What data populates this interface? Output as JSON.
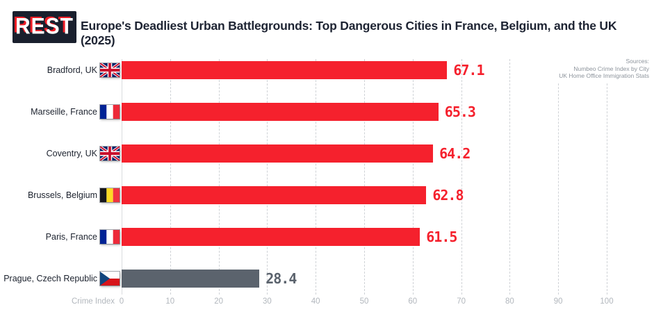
{
  "logo": {
    "text": "REST"
  },
  "sources": {
    "line1": "Sources:",
    "line2": "Numbeo Crime Index by City",
    "line3": "UK Home Office Immigration Stats"
  },
  "chart_data": {
    "type": "bar",
    "orientation": "horizontal",
    "title": "Europe's Deadliest Urban Battlegrounds: Top Dangerous Cities in France, Belgium, and the UK (2025)",
    "xlabel": "Crime Index",
    "xlim": [
      0,
      100
    ],
    "ticks": [
      0,
      10,
      20,
      30,
      40,
      50,
      60,
      70,
      80,
      90,
      100
    ],
    "grid": "vertical-dashed",
    "highlight_color": "#f5212d",
    "comparison_color": "#5b636d",
    "categories": [
      "Bradford, UK",
      "Marseille, France",
      "Coventry, UK",
      "Brussels, Belgium",
      "Paris, France",
      "Prague, Czech Republic"
    ],
    "values": [
      67.1,
      65.3,
      64.2,
      62.8,
      61.5,
      28.4
    ],
    "bars": [
      {
        "label": "Bradford, UK",
        "value": 67.1,
        "flag": "uk",
        "color": "#f5212d",
        "value_color": "#f5212d"
      },
      {
        "label": "Marseille, France",
        "value": 65.3,
        "flag": "france",
        "color": "#f5212d",
        "value_color": "#f5212d"
      },
      {
        "label": "Coventry, UK",
        "value": 64.2,
        "flag": "uk",
        "color": "#f5212d",
        "value_color": "#f5212d"
      },
      {
        "label": "Brussels, Belgium",
        "value": 62.8,
        "flag": "belgium",
        "color": "#f5212d",
        "value_color": "#f5212d"
      },
      {
        "label": "Paris, France",
        "value": 61.5,
        "flag": "france",
        "color": "#f5212d",
        "value_color": "#f5212d"
      },
      {
        "label": "Prague, Czech Republic",
        "value": 28.4,
        "flag": "czech",
        "color": "#5b636d",
        "value_color": "#5b636d"
      }
    ]
  }
}
